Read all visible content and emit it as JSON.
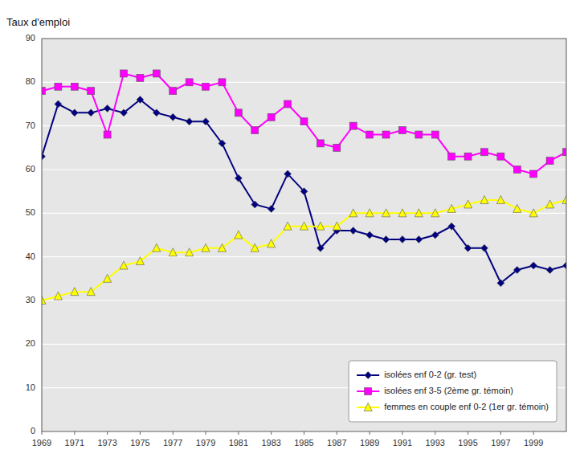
{
  "chart_data": {
    "type": "line",
    "y_label": "Taux d'emploi",
    "x": [
      1969,
      1970,
      1971,
      1972,
      1973,
      1974,
      1975,
      1976,
      1977,
      1978,
      1979,
      1980,
      1981,
      1982,
      1983,
      1984,
      1985,
      1986,
      1987,
      1988,
      1989,
      1990,
      1991,
      1992,
      1993,
      1994,
      1995,
      1996,
      1997,
      1998,
      1999,
      2000,
      2001
    ],
    "series": [
      {
        "name": "isolées enf 0-2 (gr. test)",
        "color": "#000080",
        "marker": "diamond",
        "values": [
          63,
          75,
          73,
          73,
          74,
          73,
          76,
          73,
          72,
          71,
          71,
          66,
          58,
          52,
          51,
          59,
          55,
          42,
          46,
          46,
          45,
          44,
          44,
          44,
          45,
          47,
          42,
          42,
          34,
          37,
          38,
          37,
          38
        ]
      },
      {
        "name": "isolées enf 3-5 (2ème gr. témoin)",
        "color": "#FF00FF",
        "marker": "square",
        "values": [
          78,
          79,
          79,
          78,
          68,
          82,
          81,
          82,
          78,
          80,
          79,
          80,
          73,
          69,
          72,
          75,
          71,
          66,
          65,
          70,
          68,
          68,
          69,
          68,
          68,
          63,
          63,
          64,
          63,
          60,
          59,
          62,
          64
        ]
      },
      {
        "name": "femmes en couple enf 0-2 (1er gr. témoin)",
        "color": "#FFFF00",
        "marker": "triangle",
        "values": [
          30,
          31,
          32,
          32,
          35,
          38,
          39,
          42,
          41,
          41,
          42,
          42,
          45,
          42,
          43,
          47,
          47,
          47,
          47,
          50,
          50,
          50,
          50,
          50,
          50,
          51,
          52,
          53,
          53,
          51,
          50,
          52,
          53
        ]
      }
    ],
    "xlim": [
      1969,
      2001
    ],
    "xticks": [
      1969,
      1971,
      1973,
      1975,
      1977,
      1979,
      1981,
      1983,
      1985,
      1987,
      1989,
      1991,
      1993,
      1995,
      1997,
      1999
    ],
    "ylim": [
      0,
      90
    ],
    "yticks": [
      0,
      10,
      20,
      30,
      40,
      50,
      60,
      70,
      80,
      90
    ],
    "grid": true,
    "legend": "lower right"
  }
}
